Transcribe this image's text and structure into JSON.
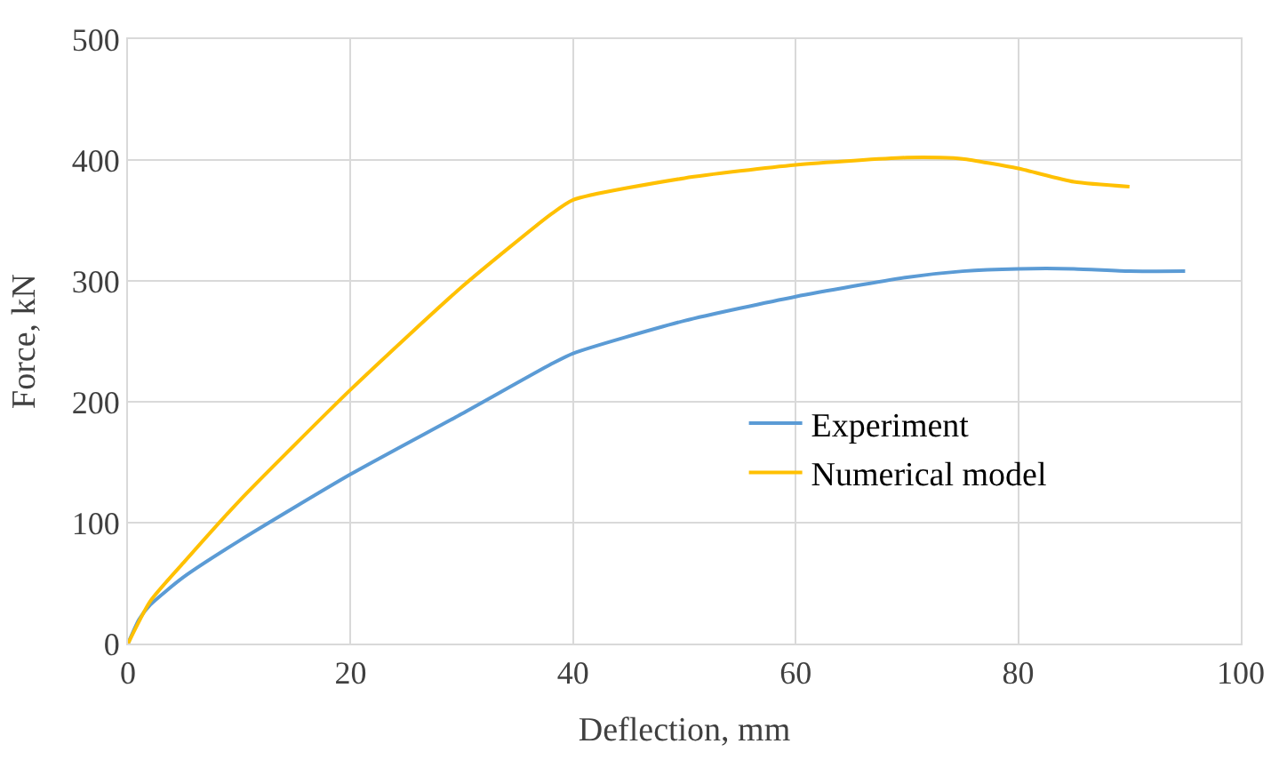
{
  "chart_data": {
    "type": "line",
    "xlabel": "Deflection, mm",
    "ylabel": "Force, kN",
    "series": [
      {
        "name": "Experiment",
        "color": "#5b9bd5",
        "x": [
          0,
          1,
          2,
          5,
          10,
          20,
          30,
          38,
          40,
          50,
          60,
          70,
          75,
          80,
          85,
          90,
          95
        ],
        "values": [
          0,
          20,
          32,
          55,
          85,
          140,
          190,
          231,
          240,
          267,
          287,
          303,
          308,
          310,
          310,
          308,
          308
        ]
      },
      {
        "name": "Numerical model",
        "color": "#ffc000",
        "x": [
          0,
          2,
          5,
          10,
          20,
          30,
          38,
          40,
          50,
          60,
          70,
          73,
          75,
          80,
          85,
          90
        ],
        "values": [
          0,
          35,
          67,
          118,
          210,
          295,
          355,
          367,
          385,
          396,
          402,
          402,
          401,
          393,
          382,
          378
        ]
      }
    ],
    "xlim": [
      0,
      100
    ],
    "xticks": [
      0,
      20,
      40,
      60,
      80,
      100
    ],
    "ylim": [
      0,
      500
    ],
    "yticks": [
      0,
      100,
      200,
      300,
      400,
      500
    ],
    "grid": true,
    "legend": "right",
    "marker": "none",
    "line_style": "solid"
  }
}
